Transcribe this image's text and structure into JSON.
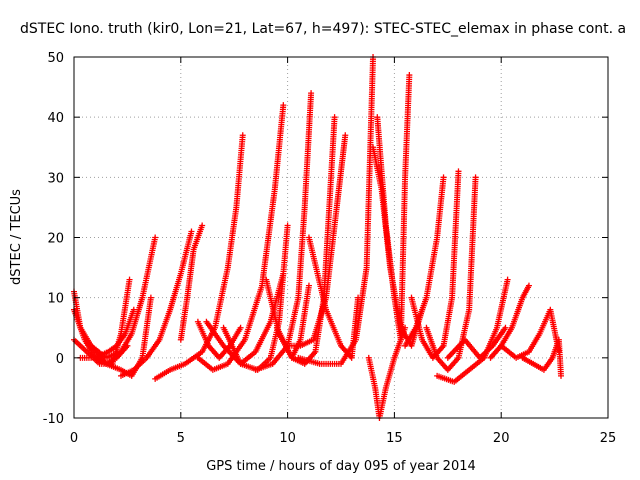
{
  "chart_data": {
    "type": "scatter",
    "title": "dSTEC Iono. truth (kir0, Lon=21, Lat=67, h=497): STEC-STEC_elemax in phase cont. a",
    "xlabel": "GPS time / hours of day 095 of year 2014",
    "ylabel": "dSTEC  / TECUs",
    "xlim": [
      0,
      25
    ],
    "ylim": [
      -10,
      50
    ],
    "x_ticks": [
      "0",
      "5",
      "10",
      "15",
      "20",
      "25"
    ],
    "y_ticks": [
      "-10",
      "0",
      "10",
      "20",
      "30",
      "40",
      "50"
    ],
    "grid": true,
    "marker": "+",
    "colors": {
      "series": "#ff0000",
      "grid": "#a0a0a0",
      "axis": "#000000"
    },
    "arcs": [
      {
        "x": [
          0.0,
          0.3,
          0.8,
          1.5,
          2.2,
          2.7,
          3.2,
          3.8
        ],
        "y": [
          11,
          5,
          2,
          0,
          1,
          4,
          10,
          20
        ]
      },
      {
        "x": [
          0.0,
          0.5,
          1.0,
          1.5,
          2.0,
          2.5
        ],
        "y": [
          8,
          3,
          0,
          -1,
          0,
          2
        ]
      },
      {
        "x": [
          0.0,
          0.6,
          1.2,
          1.8,
          2.2,
          2.6
        ],
        "y": [
          3,
          1,
          -1,
          -1,
          4,
          13
        ]
      },
      {
        "x": [
          0.8,
          1.5,
          2.2,
          2.7,
          3.2,
          3.6
        ],
        "y": [
          2,
          -1,
          -2,
          -3,
          0,
          10
        ]
      },
      {
        "x": [
          0.3,
          1.0,
          1.6,
          2.0,
          2.4,
          2.8
        ],
        "y": [
          0,
          0,
          1,
          2,
          4,
          8
        ]
      },
      {
        "x": [
          2.2,
          2.8,
          3.4,
          4.0,
          4.5,
          5.0,
          5.5
        ],
        "y": [
          -3,
          -2,
          0,
          3,
          8,
          14,
          21
        ]
      },
      {
        "x": [
          3.8,
          4.5,
          5.2,
          6.0,
          6.6,
          7.2,
          7.6,
          7.9
        ],
        "y": [
          -3.5,
          -2,
          -1,
          1,
          5,
          15,
          25,
          37
        ]
      },
      {
        "x": [
          5.0,
          5.3,
          5.6,
          6.0
        ],
        "y": [
          3,
          10,
          18,
          22
        ]
      },
      {
        "x": [
          5.8,
          6.5,
          7.2,
          8.0,
          8.8,
          9.4,
          9.8
        ],
        "y": [
          0,
          -2,
          -1,
          3,
          12,
          28,
          42
        ]
      },
      {
        "x": [
          5.8,
          6.3,
          6.8,
          7.3,
          7.8
        ],
        "y": [
          6,
          2,
          0,
          2,
          5
        ]
      },
      {
        "x": [
          6.2,
          7.0,
          7.8,
          8.5,
          9.2,
          9.8
        ],
        "y": [
          6,
          2,
          -1,
          1,
          6,
          14
        ]
      },
      {
        "x": [
          7.0,
          7.8,
          8.6,
          9.2,
          9.6,
          10.0
        ],
        "y": [
          5,
          -1,
          -2,
          0,
          6,
          22
        ]
      },
      {
        "x": [
          8.5,
          9.3,
          10.0,
          10.5,
          10.8,
          11.1
        ],
        "y": [
          -2,
          -1,
          2,
          10,
          25,
          44
        ]
      },
      {
        "x": [
          9.0,
          9.6,
          10.2,
          10.6,
          11.0
        ],
        "y": [
          13,
          4,
          0,
          3,
          12
        ]
      },
      {
        "x": [
          9.5,
          10.2,
          10.8,
          11.3,
          11.7,
          12.2
        ],
        "y": [
          5,
          0,
          -1,
          1,
          10,
          40
        ]
      },
      {
        "x": [
          10.0,
          10.6,
          11.2,
          11.8,
          12.3,
          12.7
        ],
        "y": [
          2,
          2,
          3,
          10,
          25,
          37
        ]
      },
      {
        "x": [
          10.5,
          11.5,
          12.5,
          13.2,
          13.7,
          14.0
        ],
        "y": [
          0,
          -1,
          -1,
          3,
          15,
          50
        ]
      },
      {
        "x": [
          11.0,
          11.8,
          12.5,
          13.0,
          13.3
        ],
        "y": [
          20,
          8,
          2,
          0,
          10
        ]
      },
      {
        "x": [
          13.8,
          14.1,
          14.3,
          14.6,
          15.0,
          15.5
        ],
        "y": [
          0,
          -5,
          -10,
          -5,
          0,
          5
        ]
      },
      {
        "x": [
          14.0,
          14.4,
          14.8,
          15.3,
          15.8,
          16.3
        ],
        "y": [
          35,
          28,
          15,
          5,
          2,
          8
        ]
      },
      {
        "x": [
          14.2,
          14.6,
          15.0,
          15.3,
          15.5,
          15.7
        ],
        "y": [
          40,
          22,
          10,
          3,
          30,
          47
        ]
      },
      {
        "x": [
          15.5,
          16.0,
          16.5,
          17.0,
          17.3
        ],
        "y": [
          2,
          5,
          10,
          20,
          30
        ]
      },
      {
        "x": [
          15.8,
          16.3,
          16.8,
          17.3,
          17.7,
          18.0
        ],
        "y": [
          10,
          3,
          0,
          2,
          10,
          31
        ]
      },
      {
        "x": [
          16.5,
          17.0,
          17.5,
          18.0,
          18.5,
          18.8
        ],
        "y": [
          5,
          0,
          -2,
          0,
          8,
          30
        ]
      },
      {
        "x": [
          17.0,
          17.8,
          18.5,
          19.2,
          19.8,
          20.3
        ],
        "y": [
          -3,
          -4,
          -2,
          0,
          5,
          13
        ]
      },
      {
        "x": [
          17.5,
          18.3,
          19.0,
          19.6,
          20.2
        ],
        "y": [
          0,
          3,
          0,
          2,
          5
        ]
      },
      {
        "x": [
          19.5,
          20.0,
          20.5,
          21.0,
          21.3
        ],
        "y": [
          0,
          2,
          5,
          10,
          12
        ]
      },
      {
        "x": [
          20.0,
          20.7,
          21.3,
          21.8,
          22.3,
          22.7
        ],
        "y": [
          2,
          0,
          1,
          4,
          8,
          1
        ]
      },
      {
        "x": [
          21.0,
          21.5,
          22.0,
          22.4,
          22.7,
          22.8
        ],
        "y": [
          0,
          -1,
          -2,
          0,
          3,
          -3
        ]
      }
    ]
  }
}
